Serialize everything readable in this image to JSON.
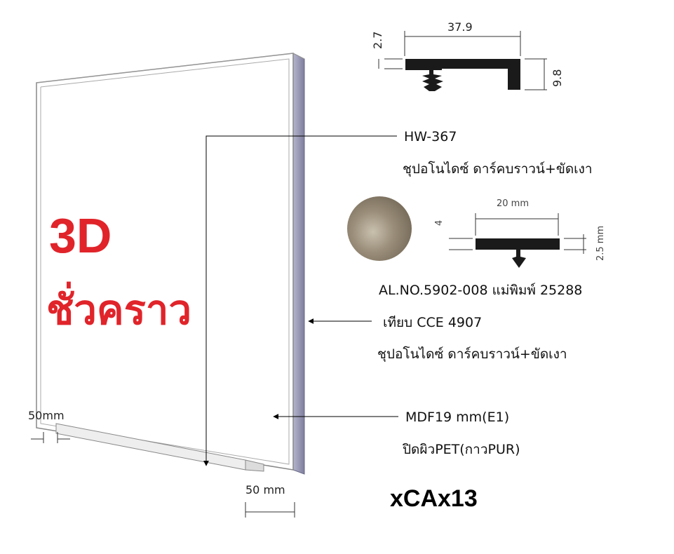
{
  "big_label": {
    "line1": "3D",
    "line2": "ชั่วคราว"
  },
  "profile_hw367": {
    "width": "37.9",
    "thickness": "2.7",
    "height": "9.8"
  },
  "callout_hw367": {
    "code": "HW-367",
    "finish": "ชุปอโนไดซ์ ดาร์คบราวน์+ขัดเงา"
  },
  "profile_al": {
    "width": "20 mm",
    "thickness": "4",
    "height": "2.5 mm"
  },
  "callout_al": {
    "code": "AL.NO.5902-008 แม่พิมพ์ 25288"
  },
  "callout_cce": {
    "code": "เทียบ CCE 4907",
    "finish": "ชุปอโนไดซ์ ดาร์คบราวน์+ขัดเงา"
  },
  "callout_mdf": {
    "material": "MDF19 mm(E1)",
    "finish": "ปิดผิวPET(กาวPUR)"
  },
  "dims": {
    "bottom_left": "50mm",
    "bottom_right": "50 mm"
  },
  "model_code": "xCAx13",
  "colors": {
    "accent_red": "#e0242a",
    "profile_fill": "#1a1a1a",
    "panel_edge": "#9a9ab8",
    "swatch": "#8e8270"
  }
}
